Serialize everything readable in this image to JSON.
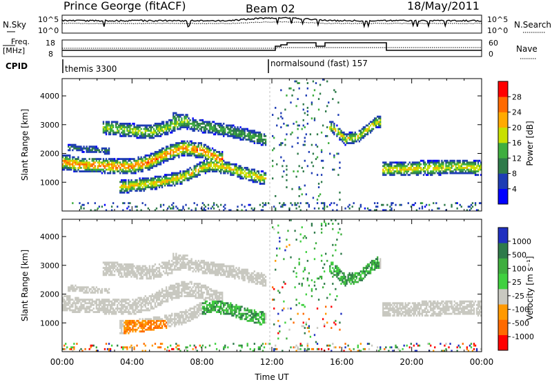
{
  "header": {
    "station": "Prince George (fitACF)",
    "beam": "Beam 02",
    "date": "18/May/2011"
  },
  "top_panel": {
    "left_label": "N.Sky",
    "left_ticks": [
      "10^5",
      "10^0"
    ],
    "right_ticks": [
      "10^5",
      "10^0"
    ],
    "right_label": "N.Search"
  },
  "freq_panel": {
    "left_label_1": "Freq.",
    "left_label_2": "[MHz]",
    "left_ticks": [
      "18",
      "8"
    ],
    "right_ticks": [
      "60",
      "0"
    ],
    "right_label": "Nave"
  },
  "cpid": {
    "label": "CPID",
    "segments": [
      {
        "start_hour": 0,
        "end_hour": 12,
        "name": "themis 3300"
      },
      {
        "start_hour": 12,
        "end_hour": 24,
        "name": "normalsound (fast) 157"
      }
    ]
  },
  "chart_data": [
    {
      "type": "heatmap",
      "panel": "power",
      "xlabel": "Time UT",
      "ylabel": "Slant Range [km]",
      "xlim": [
        0,
        24
      ],
      "ylim": [
        0,
        4600
      ],
      "x_ticks": [
        "00:00",
        "04:00",
        "08:00",
        "12:00",
        "16:00",
        "20:00",
        "00:00"
      ],
      "y_ticks": [
        "1000",
        "2000",
        "3000",
        "4000"
      ],
      "colorbar": {
        "label": "Power [dB]",
        "range": [
          0,
          32
        ],
        "tick_labels": [
          "28",
          "24",
          "20",
          "16",
          "12",
          "8",
          "4"
        ],
        "colors": [
          "#0000ff",
          "#1e3cb4",
          "#2e7a4a",
          "#3fae3f",
          "#c8e000",
          "#ffaa00",
          "#ff6a00",
          "#ff0000"
        ]
      },
      "scatter_bands": [
        {
          "x": [
            0.2,
            1,
            2,
            3,
            4,
            5,
            6,
            7,
            8,
            9
          ],
          "y": [
            1700,
            1600,
            1600,
            1550,
            1550,
            1700,
            2000,
            2200,
            2100,
            1800
          ],
          "width_km": 250,
          "peak_db": 26
        },
        {
          "x": [
            3.5,
            5,
            6,
            7,
            8,
            8.5,
            9.5,
            10.5,
            11.5
          ],
          "y": [
            850,
            950,
            1050,
            1200,
            1500,
            1600,
            1500,
            1300,
            1150
          ],
          "width_km": 220,
          "peak_db": 22
        },
        {
          "x": [
            2.5,
            4,
            5,
            6,
            7
          ],
          "y": [
            2900,
            2800,
            2750,
            2900,
            3150
          ],
          "width_km": 250,
          "peak_db": 18
        },
        {
          "x": [
            6.5,
            7.5,
            8.5,
            9.5,
            10.5,
            11.5
          ],
          "y": [
            3200,
            3000,
            2900,
            2800,
            2650,
            2500
          ],
          "width_km": 250,
          "peak_db": 14
        },
        {
          "x": [
            15.5,
            16.2,
            17,
            18
          ],
          "y": [
            2900,
            2500,
            2600,
            3100
          ],
          "width_km": 200,
          "peak_db": 20
        },
        {
          "x": [
            18.5,
            19.5,
            20.5,
            21.5,
            22.5,
            23.8
          ],
          "y": [
            1450,
            1450,
            1500,
            1500,
            1550,
            1500
          ],
          "width_km": 250,
          "peak_db": 20
        },
        {
          "x": [
            0.5,
            1.5,
            2.5
          ],
          "y": [
            2200,
            2150,
            2100
          ],
          "width_km": 150,
          "peak_db": 10
        }
      ]
    },
    {
      "type": "heatmap",
      "panel": "velocity",
      "xlabel": "Time UT",
      "ylabel": "Slant Range [km]",
      "xlim": [
        0,
        24
      ],
      "ylim": [
        0,
        4600
      ],
      "x_ticks": [
        "00:00",
        "04:00",
        "08:00",
        "12:00",
        "16:00",
        "20:00",
        "00:00"
      ],
      "y_ticks": [
        "1000",
        "2000",
        "3000",
        "4000"
      ],
      "colorbar": {
        "label": "Velocity [m s⁻¹]",
        "tick_labels": [
          "1000",
          "500",
          "100",
          "25",
          "-25",
          "-100",
          "-500",
          "-1000"
        ],
        "colors": [
          "#2030c0",
          "#2e7a4a",
          "#3fae3f",
          "#40d040",
          "#c8c8c0",
          "#ff9900",
          "#ff6a00",
          "#ff0000"
        ]
      }
    }
  ],
  "colors": {
    "ground_scatter": "#c8c8c0",
    "black": "#000000"
  }
}
